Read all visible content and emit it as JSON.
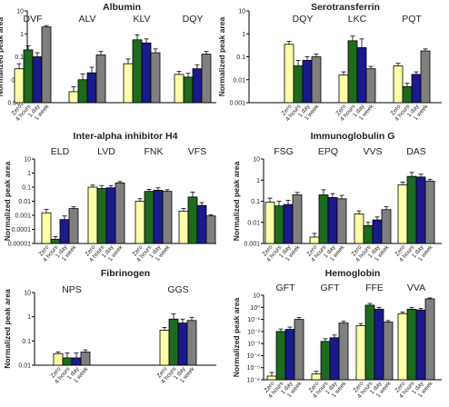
{
  "figure": {
    "ylabel": "Normalized peak area",
    "conditions": [
      "Zero",
      "4 hours",
      "1 day",
      "1 week"
    ],
    "colors": {
      "Zero": "#ffffa8",
      "4 hours": "#1e6a1e",
      "1 day": "#1a1a8c",
      "1 week": "#7f7f7f"
    },
    "panels": [
      {
        "id": "albumin",
        "title": "Albumin",
        "ylim": [
          0.001,
          10
        ],
        "ticks": [
          "10",
          "1",
          "0.1",
          "0.01",
          "0.001"
        ],
        "groups": [
          {
            "label": "DVF",
            "values": [
              0.03,
              0.2,
              0.1,
              2.0
            ],
            "err": [
              0.02,
              0.1,
              0.05,
              0.3
            ]
          },
          {
            "label": "ALV",
            "values": [
              0.003,
              0.01,
              0.02,
              0.12
            ],
            "err": [
              0.002,
              0.008,
              0.015,
              0.05
            ]
          },
          {
            "label": "KLV",
            "values": [
              0.05,
              0.55,
              0.4,
              0.15
            ],
            "err": [
              0.03,
              0.35,
              0.2,
              0.07
            ]
          },
          {
            "label": "DQY",
            "values": [
              0.017,
              0.013,
              0.03,
              0.13
            ],
            "err": [
              0.006,
              0.006,
              0.015,
              0.04
            ]
          }
        ]
      },
      {
        "id": "serotransferrin",
        "title": "Serotransferrin",
        "ylim": [
          0.001,
          10
        ],
        "ticks": [
          "10",
          "1",
          "0.1",
          "0.01",
          "0.001"
        ],
        "groups": [
          {
            "label": "DQY",
            "values": [
              0.35,
              0.04,
              0.07,
              0.1
            ],
            "err": [
              0.12,
              0.03,
              0.03,
              0.03
            ]
          },
          {
            "label": "LKC",
            "values": [
              0.016,
              0.5,
              0.25,
              0.03
            ],
            "err": [
              0.006,
              0.3,
              0.35,
              0.008
            ]
          },
          {
            "label": "PQT",
            "values": [
              0.04,
              0.005,
              0.017,
              0.18
            ],
            "err": [
              0.012,
              0.002,
              0.005,
              0.04
            ]
          }
        ]
      },
      {
        "id": "inter-alpha",
        "title": "Inter-alpha inhibitor H4",
        "ylim": [
          1e-05,
          10
        ],
        "ticks": [
          "10",
          "1",
          "0.1",
          "0.01",
          "0.001",
          "0.0001",
          "0.00001"
        ],
        "groups": [
          {
            "label": "ELD",
            "values": [
              0.0015,
              2e-05,
              0.0005,
              0.003
            ],
            "err": [
              0.0012,
              1e-05,
              0.0004,
              0.001
            ]
          },
          {
            "label": "LVD",
            "values": [
              0.1,
              0.08,
              0.09,
              0.2
            ],
            "err": [
              0.04,
              0.05,
              0.04,
              0.05
            ]
          },
          {
            "label": "FNK",
            "values": [
              0.01,
              0.05,
              0.06,
              0.05
            ],
            "err": [
              0.005,
              0.02,
              0.03,
              0.015
            ]
          },
          {
            "label": "VFS",
            "values": [
              0.002,
              0.02,
              0.005,
              0.0009
            ],
            "err": [
              0.001,
              0.025,
              0.003,
              0.0002
            ]
          }
        ]
      },
      {
        "id": "immunoglobulin-g",
        "title": "Immunoglobulin G",
        "ylim": [
          0.001,
          10
        ],
        "ticks": [
          "10",
          "1",
          "0.1",
          "0.01",
          "0.001"
        ],
        "groups": [
          {
            "label": "FSG",
            "values": [
              0.09,
              0.06,
              0.07,
              0.2
            ],
            "err": [
              0.05,
              0.04,
              0.04,
              0.06
            ]
          },
          {
            "label": "EPQ",
            "values": [
              0.002,
              0.2,
              0.15,
              0.13
            ],
            "err": [
              0.001,
              0.15,
              0.08,
              0.06
            ]
          },
          {
            "label": "VVS",
            "values": [
              0.025,
              0.007,
              0.013,
              0.04
            ],
            "err": [
              0.01,
              0.003,
              0.005,
              0.015
            ]
          },
          {
            "label": "DAS",
            "values": [
              0.6,
              1.5,
              1.4,
              0.9
            ],
            "err": [
              0.2,
              0.8,
              0.5,
              0.2
            ]
          }
        ]
      },
      {
        "id": "fibrinogen",
        "title": "Fibrinogen",
        "ylim": [
          0.01,
          10
        ],
        "ticks": [
          "10",
          "1",
          "0.1",
          "0.01"
        ],
        "groups": [
          {
            "label": "NPS",
            "values": [
              0.03,
              0.02,
              0.02,
              0.035
            ],
            "err": [
              0.005,
              0.012,
              0.012,
              0.008
            ]
          },
          {
            "label": "GGS",
            "values": [
              0.28,
              0.8,
              0.55,
              0.7
            ],
            "err": [
              0.08,
              0.5,
              0.25,
              0.25
            ]
          }
        ]
      },
      {
        "id": "hemoglobin",
        "title": "Hemoglobin",
        "ylim": [
          1e-06,
          10
        ],
        "ticks": [
          "10",
          "10⁰",
          "10⁻¹",
          "10⁻²",
          "10⁻³",
          "10⁻⁴",
          "10⁻⁵",
          "10⁻⁶"
        ],
        "groups": [
          {
            "label": "GFT",
            "values": [
              2e-06,
              0.01,
              0.015,
              0.1
            ],
            "err": [
              2e-06,
              0.006,
              0.008,
              0.04
            ]
          },
          {
            "label": "GFT",
            "values": [
              3e-06,
              0.0015,
              0.003,
              0.05
            ],
            "err": [
              2e-06,
              0.001,
              0.002,
              0.02
            ]
          },
          {
            "label": "FFE",
            "values": [
              0.03,
              1.5,
              0.7,
              0.06
            ],
            "err": [
              0.015,
              0.6,
              0.3,
              0.02
            ]
          },
          {
            "label": "VVA",
            "values": [
              0.3,
              0.7,
              0.6,
              5.0
            ],
            "err": [
              0.1,
              0.3,
              0.2,
              1.0
            ]
          }
        ]
      }
    ]
  },
  "chart_data": [
    {
      "type": "bar",
      "title": "Albumin",
      "ylabel": "Normalized peak area",
      "ylim": [
        0.001,
        10
      ],
      "log_scale": true,
      "categories": [
        "DVF",
        "ALV",
        "KLV",
        "DQY"
      ],
      "series": [
        {
          "name": "Zero",
          "values": [
            0.03,
            0.003,
            0.05,
            0.017
          ]
        },
        {
          "name": "4 hours",
          "values": [
            0.2,
            0.01,
            0.55,
            0.013
          ]
        },
        {
          "name": "1 day",
          "values": [
            0.1,
            0.02,
            0.4,
            0.03
          ]
        },
        {
          "name": "1 week",
          "values": [
            2.0,
            0.12,
            0.15,
            0.13
          ]
        }
      ]
    },
    {
      "type": "bar",
      "title": "Serotransferrin",
      "ylabel": "Normalized peak area",
      "ylim": [
        0.001,
        10
      ],
      "log_scale": true,
      "categories": [
        "DQY",
        "LKC",
        "PQT"
      ],
      "series": [
        {
          "name": "Zero",
          "values": [
            0.35,
            0.016,
            0.04
          ]
        },
        {
          "name": "4 hours",
          "values": [
            0.04,
            0.5,
            0.005
          ]
        },
        {
          "name": "1 day",
          "values": [
            0.07,
            0.25,
            0.017
          ]
        },
        {
          "name": "1 week",
          "values": [
            0.1,
            0.03,
            0.18
          ]
        }
      ]
    },
    {
      "type": "bar",
      "title": "Inter-alpha inhibitor H4",
      "ylabel": "Normalized peak area",
      "ylim": [
        1e-05,
        10
      ],
      "log_scale": true,
      "categories": [
        "ELD",
        "LVD",
        "FNK",
        "VFS"
      ],
      "series": [
        {
          "name": "Zero",
          "values": [
            0.0015,
            0.1,
            0.01,
            0.002
          ]
        },
        {
          "name": "4 hours",
          "values": [
            2e-05,
            0.08,
            0.05,
            0.02
          ]
        },
        {
          "name": "1 day",
          "values": [
            0.0005,
            0.09,
            0.06,
            0.005
          ]
        },
        {
          "name": "1 week",
          "values": [
            0.003,
            0.2,
            0.05,
            0.0009
          ]
        }
      ]
    },
    {
      "type": "bar",
      "title": "Immunoglobulin G",
      "ylabel": "Normalized peak area",
      "ylim": [
        0.001,
        10
      ],
      "log_scale": true,
      "categories": [
        "FSG",
        "EPQ",
        "VVS",
        "DAS"
      ],
      "series": [
        {
          "name": "Zero",
          "values": [
            0.09,
            0.002,
            0.025,
            0.6
          ]
        },
        {
          "name": "4 hours",
          "values": [
            0.06,
            0.2,
            0.007,
            1.5
          ]
        },
        {
          "name": "1 day",
          "values": [
            0.07,
            0.15,
            0.013,
            1.4
          ]
        },
        {
          "name": "1 week",
          "values": [
            0.2,
            0.13,
            0.04,
            0.9
          ]
        }
      ]
    },
    {
      "type": "bar",
      "title": "Fibrinogen",
      "ylabel": "Normalized peak area",
      "ylim": [
        0.01,
        10
      ],
      "log_scale": true,
      "categories": [
        "NPS",
        "GGS"
      ],
      "series": [
        {
          "name": "Zero",
          "values": [
            0.03,
            0.28
          ]
        },
        {
          "name": "4 hours",
          "values": [
            0.02,
            0.8
          ]
        },
        {
          "name": "1 day",
          "values": [
            0.02,
            0.55
          ]
        },
        {
          "name": "1 week",
          "values": [
            0.035,
            0.7
          ]
        }
      ]
    },
    {
      "type": "bar",
      "title": "Hemoglobin",
      "ylabel": "Normalized peak area",
      "ylim": [
        1e-06,
        10
      ],
      "log_scale": true,
      "categories": [
        "GFT",
        "GFT",
        "FFE",
        "VVA"
      ],
      "series": [
        {
          "name": "Zero",
          "values": [
            2e-06,
            3e-06,
            0.03,
            0.3
          ]
        },
        {
          "name": "4 hours",
          "values": [
            0.01,
            0.0015,
            1.5,
            0.7
          ]
        },
        {
          "name": "1 day",
          "values": [
            0.015,
            0.003,
            0.7,
            0.6
          ]
        },
        {
          "name": "1 week",
          "values": [
            0.1,
            0.05,
            0.06,
            5.0
          ]
        }
      ]
    }
  ]
}
